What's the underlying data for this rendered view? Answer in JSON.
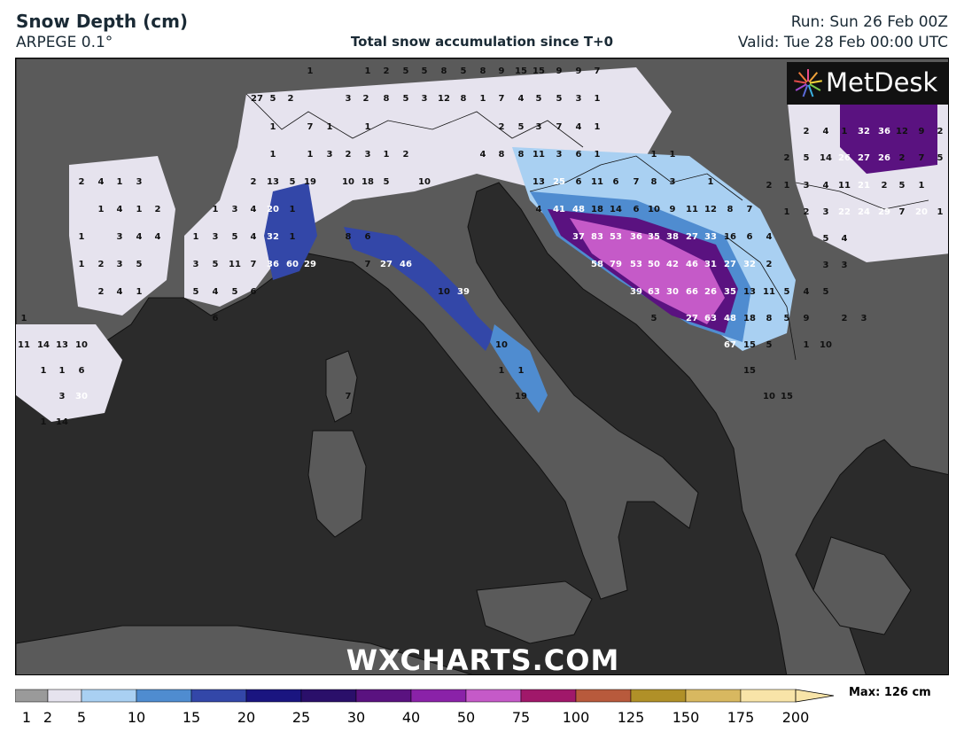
{
  "header": {
    "title": "Snow Depth (cm)",
    "model": "ARPEGE 0.1°",
    "subtitle": "Total snow accumulation since T+0",
    "run": "Run: Sun 26 Feb 00Z",
    "valid": "Valid: Tue 28 Feb 00:00 UTC"
  },
  "logo": {
    "text": "MetDesk"
  },
  "watermark": "WXCHARTS.COM",
  "colors": {
    "sea": "#2b2b2b",
    "land": "#5a5a5a",
    "land_light": "#6b6b6b",
    "s1": "#9a9a9a",
    "s2": "#e6e3ee",
    "s5": "#a9d0f2",
    "s10": "#4f8cd0",
    "s15": "#3347a8",
    "s20": "#1a1580",
    "s25": "#2a0f6a",
    "s30": "#5a1280",
    "s40": "#8a22a8",
    "s50": "#c55ac8",
    "s75": "#a0186a"
  },
  "legend": {
    "max_label": "Max: 126 cm",
    "ticks": [
      "1",
      "2",
      "5",
      "10",
      "15",
      "20",
      "25",
      "30",
      "40",
      "50",
      "75",
      "100",
      "125",
      "150",
      "175",
      "200"
    ],
    "colors": [
      "#9a9a9a",
      "#e6e3ee",
      "#a9d0f2",
      "#4f8cd0",
      "#3347a8",
      "#1a1580",
      "#2a0f6a",
      "#5a1280",
      "#8a22a8",
      "#c55ac8",
      "#a0186a",
      "#b85a3c",
      "#b09028",
      "#d8b860",
      "#f8e4a8"
    ]
  },
  "snow_labels": [
    {
      "t": "1",
      "c": "d"
    },
    {
      "t": "1",
      "c": "d"
    },
    {
      "t": "2",
      "c": "d"
    },
    {
      "t": "5",
      "c": "d"
    },
    {
      "t": "5",
      "c": "d"
    },
    {
      "t": "8",
      "c": "d"
    },
    {
      "t": "5",
      "c": "d"
    },
    {
      "t": "8",
      "c": "d"
    },
    {
      "t": "9",
      "c": "d"
    },
    {
      "t": "15",
      "c": "d"
    },
    {
      "t": "15",
      "c": "d"
    },
    {
      "t": "9",
      "c": "d"
    },
    {
      "t": "9",
      "c": "d"
    },
    {
      "t": "7",
      "c": "d"
    },
    {
      "t": "27",
      "c": "d"
    },
    {
      "t": "5",
      "c": "d"
    },
    {
      "t": "2",
      "c": "d"
    },
    {
      "t": "3",
      "c": "d"
    },
    {
      "t": "2",
      "c": "d"
    },
    {
      "t": "8",
      "c": "d"
    },
    {
      "t": "5",
      "c": "d"
    },
    {
      "t": "3",
      "c": "d"
    },
    {
      "t": "12",
      "c": "d"
    },
    {
      "t": "8",
      "c": "d"
    },
    {
      "t": "1",
      "c": "d"
    },
    {
      "t": "7",
      "c": "d"
    },
    {
      "t": "4",
      "c": "d"
    },
    {
      "t": "5",
      "c": "d"
    },
    {
      "t": "5",
      "c": "d"
    },
    {
      "t": "3",
      "c": "d"
    },
    {
      "t": "1",
      "c": "d"
    },
    {
      "t": "1",
      "c": "d"
    },
    {
      "t": "7",
      "c": "d"
    },
    {
      "t": "1",
      "c": "d"
    },
    {
      "t": "1",
      "c": "d"
    },
    {
      "t": "2",
      "c": "d"
    },
    {
      "t": "5",
      "c": "d"
    },
    {
      "t": "3",
      "c": "d"
    },
    {
      "t": "7",
      "c": "d"
    },
    {
      "t": "4",
      "c": "d"
    },
    {
      "t": "1",
      "c": "d"
    },
    {
      "t": "1",
      "c": "d"
    },
    {
      "t": "1",
      "c": "d"
    },
    {
      "t": "3",
      "c": "d"
    },
    {
      "t": "2",
      "c": "d"
    },
    {
      "t": "3",
      "c": "d"
    },
    {
      "t": "1",
      "c": "d"
    },
    {
      "t": "2",
      "c": "d"
    },
    {
      "t": "4",
      "c": "d"
    },
    {
      "t": "8",
      "c": "d"
    },
    {
      "t": "8",
      "c": "d"
    },
    {
      "t": "11",
      "c": "d"
    },
    {
      "t": "3",
      "c": "d"
    },
    {
      "t": "6",
      "c": "d"
    },
    {
      "t": "1",
      "c": "d"
    },
    {
      "t": "1",
      "c": "d"
    },
    {
      "t": "1",
      "c": "d"
    },
    {
      "t": "2",
      "c": "d"
    },
    {
      "t": "4",
      "c": "d"
    },
    {
      "t": "1",
      "c": "d"
    },
    {
      "t": "3",
      "c": "d"
    },
    {
      "t": "2",
      "c": "d"
    },
    {
      "t": "13",
      "c": "d"
    },
    {
      "t": "5",
      "c": "d"
    },
    {
      "t": "19",
      "c": "d"
    },
    {
      "t": "10",
      "c": "d"
    },
    {
      "t": "18",
      "c": "d"
    },
    {
      "t": "5",
      "c": "d"
    },
    {
      "t": "10",
      "c": "d"
    },
    {
      "t": "13",
      "c": "d"
    },
    {
      "t": "25",
      "c": "w"
    },
    {
      "t": "6",
      "c": "d"
    },
    {
      "t": "11",
      "c": "d"
    },
    {
      "t": "6",
      "c": "d"
    },
    {
      "t": "7",
      "c": "d"
    },
    {
      "t": "8",
      "c": "d"
    },
    {
      "t": "3",
      "c": "d"
    },
    {
      "t": "1",
      "c": "d"
    },
    {
      "t": "1",
      "c": "d"
    },
    {
      "t": "4",
      "c": "d"
    },
    {
      "t": "1",
      "c": "d"
    },
    {
      "t": "2",
      "c": "d"
    },
    {
      "t": "1",
      "c": "d"
    },
    {
      "t": "3",
      "c": "d"
    },
    {
      "t": "4",
      "c": "d"
    },
    {
      "t": "20",
      "c": "w"
    },
    {
      "t": "1",
      "c": "d"
    },
    {
      "t": "4",
      "c": "d"
    },
    {
      "t": "41",
      "c": "w"
    },
    {
      "t": "48",
      "c": "w"
    },
    {
      "t": "18",
      "c": "d"
    },
    {
      "t": "14",
      "c": "d"
    },
    {
      "t": "6",
      "c": "d"
    },
    {
      "t": "10",
      "c": "d"
    },
    {
      "t": "9",
      "c": "d"
    },
    {
      "t": "11",
      "c": "d"
    },
    {
      "t": "12",
      "c": "d"
    },
    {
      "t": "8",
      "c": "d"
    },
    {
      "t": "7",
      "c": "d"
    },
    {
      "t": "1",
      "c": "d"
    },
    {
      "t": "3",
      "c": "d"
    },
    {
      "t": "4",
      "c": "d"
    },
    {
      "t": "4",
      "c": "d"
    },
    {
      "t": "1",
      "c": "d"
    },
    {
      "t": "3",
      "c": "d"
    },
    {
      "t": "5",
      "c": "d"
    },
    {
      "t": "4",
      "c": "d"
    },
    {
      "t": "32",
      "c": "w"
    },
    {
      "t": "1",
      "c": "d"
    },
    {
      "t": "8",
      "c": "d"
    },
    {
      "t": "6",
      "c": "d"
    },
    {
      "t": "37",
      "c": "w"
    },
    {
      "t": "83",
      "c": "w"
    },
    {
      "t": "53",
      "c": "w"
    },
    {
      "t": "36",
      "c": "w"
    },
    {
      "t": "35",
      "c": "w"
    },
    {
      "t": "38",
      "c": "w"
    },
    {
      "t": "27",
      "c": "w"
    },
    {
      "t": "33",
      "c": "w"
    },
    {
      "t": "16",
      "c": "d"
    },
    {
      "t": "6",
      "c": "d"
    },
    {
      "t": "4",
      "c": "d"
    },
    {
      "t": "1",
      "c": "d"
    },
    {
      "t": "2",
      "c": "d"
    },
    {
      "t": "3",
      "c": "d"
    },
    {
      "t": "5",
      "c": "d"
    },
    {
      "t": "3",
      "c": "d"
    },
    {
      "t": "5",
      "c": "d"
    },
    {
      "t": "11",
      "c": "d"
    },
    {
      "t": "7",
      "c": "d"
    },
    {
      "t": "36",
      "c": "w"
    },
    {
      "t": "60",
      "c": "w"
    },
    {
      "t": "29",
      "c": "w"
    },
    {
      "t": "7",
      "c": "d"
    },
    {
      "t": "27",
      "c": "w"
    },
    {
      "t": "46",
      "c": "w"
    },
    {
      "t": "58",
      "c": "w"
    },
    {
      "t": "79",
      "c": "w"
    },
    {
      "t": "53",
      "c": "w"
    },
    {
      "t": "50",
      "c": "w"
    },
    {
      "t": "42",
      "c": "w"
    },
    {
      "t": "46",
      "c": "w"
    },
    {
      "t": "31",
      "c": "w"
    },
    {
      "t": "27",
      "c": "w"
    },
    {
      "t": "32",
      "c": "w"
    },
    {
      "t": "2",
      "c": "d"
    },
    {
      "t": "2",
      "c": "d"
    },
    {
      "t": "4",
      "c": "d"
    },
    {
      "t": "1",
      "c": "d"
    },
    {
      "t": "5",
      "c": "d"
    },
    {
      "t": "4",
      "c": "d"
    },
    {
      "t": "5",
      "c": "d"
    },
    {
      "t": "6",
      "c": "d"
    },
    {
      "t": "10",
      "c": "d"
    },
    {
      "t": "39",
      "c": "w"
    },
    {
      "t": "39",
      "c": "w"
    },
    {
      "t": "63",
      "c": "w"
    },
    {
      "t": "30",
      "c": "w"
    },
    {
      "t": "66",
      "c": "w"
    },
    {
      "t": "26",
      "c": "w"
    },
    {
      "t": "35",
      "c": "w"
    },
    {
      "t": "13",
      "c": "d"
    },
    {
      "t": "11",
      "c": "d"
    },
    {
      "t": "5",
      "c": "d"
    },
    {
      "t": "4",
      "c": "d"
    },
    {
      "t": "5",
      "c": "d"
    },
    {
      "t": "1",
      "c": "d"
    },
    {
      "t": "6",
      "c": "d"
    },
    {
      "t": "5",
      "c": "d"
    },
    {
      "t": "27",
      "c": "w"
    },
    {
      "t": "63",
      "c": "w"
    },
    {
      "t": "48",
      "c": "w"
    },
    {
      "t": "18",
      "c": "d"
    },
    {
      "t": "8",
      "c": "d"
    },
    {
      "t": "5",
      "c": "d"
    },
    {
      "t": "9",
      "c": "d"
    },
    {
      "t": "2",
      "c": "d"
    },
    {
      "t": "3",
      "c": "d"
    },
    {
      "t": "11",
      "c": "d"
    },
    {
      "t": "14",
      "c": "d"
    },
    {
      "t": "13",
      "c": "d"
    },
    {
      "t": "10",
      "c": "d"
    },
    {
      "t": "10",
      "c": "d"
    },
    {
      "t": "67",
      "c": "w"
    },
    {
      "t": "15",
      "c": "d"
    },
    {
      "t": "5",
      "c": "d"
    },
    {
      "t": "1",
      "c": "d"
    },
    {
      "t": "10",
      "c": "d"
    },
    {
      "t": "1",
      "c": "d"
    },
    {
      "t": "1",
      "c": "d"
    },
    {
      "t": "6",
      "c": "d"
    },
    {
      "t": "1",
      "c": "d"
    },
    {
      "t": "1",
      "c": "d"
    },
    {
      "t": "15",
      "c": "d"
    },
    {
      "t": "3",
      "c": "d"
    },
    {
      "t": "30",
      "c": "w"
    },
    {
      "t": "7",
      "c": "d"
    },
    {
      "t": "19",
      "c": "d"
    },
    {
      "t": "10",
      "c": "d"
    },
    {
      "t": "15",
      "c": "d"
    },
    {
      "t": "1",
      "c": "d"
    },
    {
      "t": "14",
      "c": "d"
    },
    {
      "t": "2",
      "c": "d"
    },
    {
      "t": "4",
      "c": "d"
    },
    {
      "t": "1",
      "c": "d"
    },
    {
      "t": "32",
      "c": "w"
    },
    {
      "t": "36",
      "c": "w"
    },
    {
      "t": "12",
      "c": "d"
    },
    {
      "t": "9",
      "c": "d"
    },
    {
      "t": "2",
      "c": "d"
    },
    {
      "t": "2",
      "c": "d"
    },
    {
      "t": "5",
      "c": "d"
    },
    {
      "t": "14",
      "c": "d"
    },
    {
      "t": "26",
      "c": "w"
    },
    {
      "t": "27",
      "c": "w"
    },
    {
      "t": "26",
      "c": "w"
    },
    {
      "t": "2",
      "c": "d"
    },
    {
      "t": "7",
      "c": "d"
    },
    {
      "t": "5",
      "c": "d"
    },
    {
      "t": "2",
      "c": "d"
    },
    {
      "t": "1",
      "c": "d"
    },
    {
      "t": "3",
      "c": "d"
    },
    {
      "t": "4",
      "c": "d"
    },
    {
      "t": "11",
      "c": "d"
    },
    {
      "t": "21",
      "c": "w"
    },
    {
      "t": "2",
      "c": "d"
    },
    {
      "t": "5",
      "c": "d"
    },
    {
      "t": "1",
      "c": "d"
    },
    {
      "t": "1",
      "c": "d"
    },
    {
      "t": "2",
      "c": "d"
    },
    {
      "t": "3",
      "c": "d"
    },
    {
      "t": "22",
      "c": "w"
    },
    {
      "t": "24",
      "c": "w"
    },
    {
      "t": "29",
      "c": "w"
    },
    {
      "t": "7",
      "c": "d"
    },
    {
      "t": "20",
      "c": "w"
    },
    {
      "t": "1",
      "c": "d"
    },
    {
      "t": "5",
      "c": "d"
    },
    {
      "t": "4",
      "c": "d"
    },
    {
      "t": "3",
      "c": "d"
    },
    {
      "t": "3",
      "c": "d"
    }
  ]
}
